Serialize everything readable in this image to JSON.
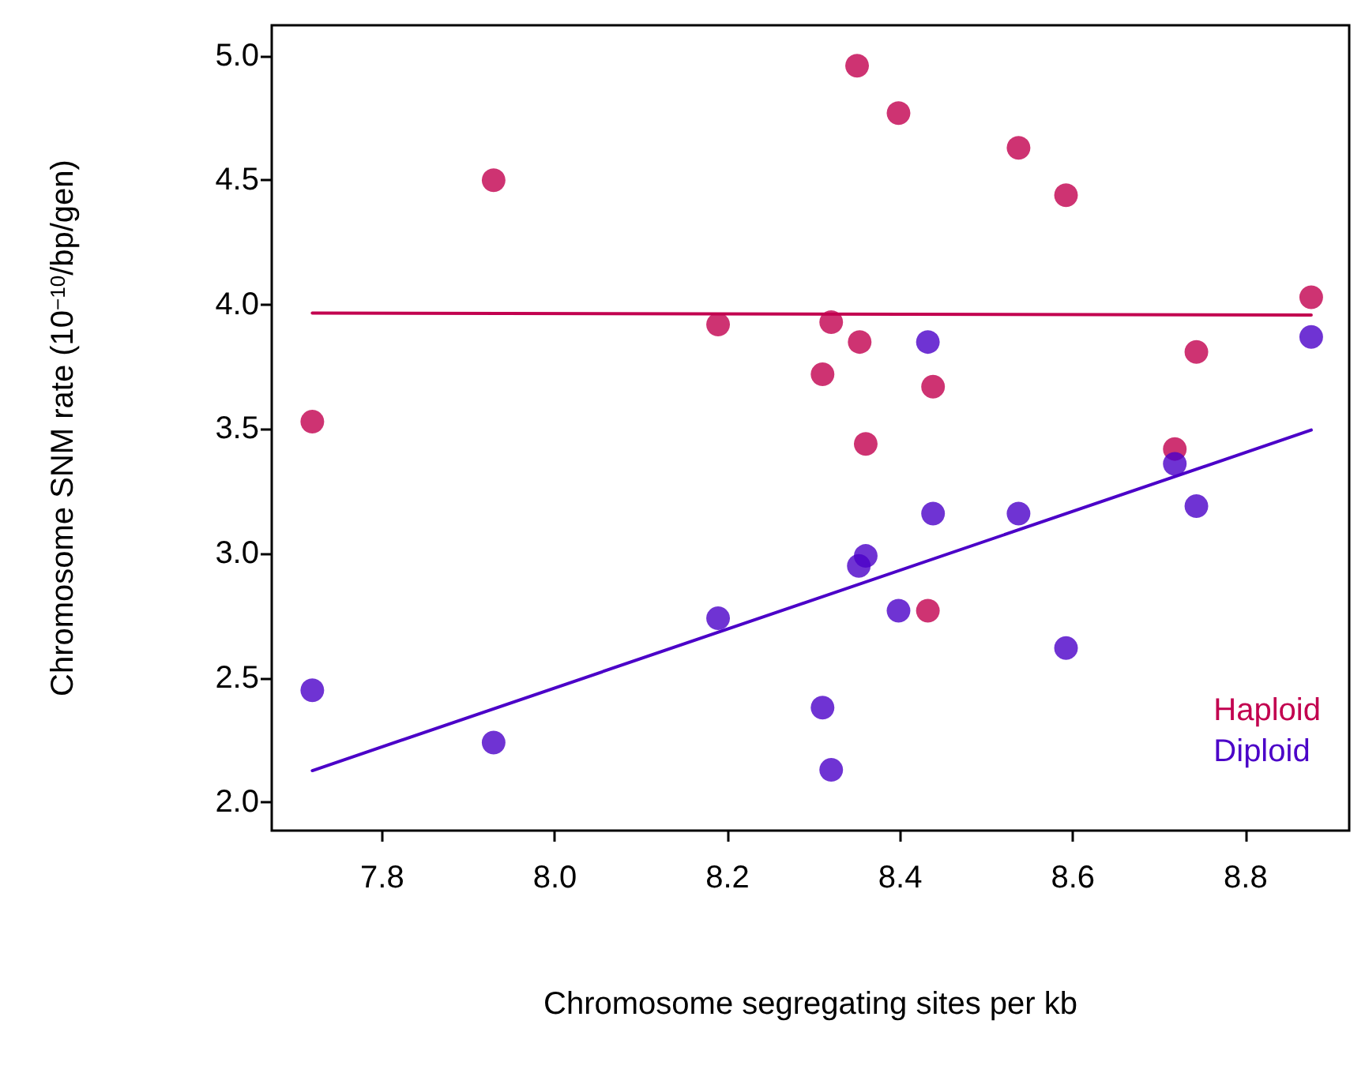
{
  "chart_data": {
    "type": "scatter",
    "xlabel": "Chromosome segregating sites per kb",
    "ylabel": "Chromosome SNM rate (10$^{−10}$/bp/gen)",
    "xlim": [
      7.672,
      8.92
    ],
    "ylim": [
      1.886,
      5.123
    ],
    "xticks": [
      7.8,
      {
        "value": 8,
        "label": "8.0"
      },
      8.2,
      8.4,
      8.6,
      8.8
    ],
    "yticks": [
      {
        "value": 2,
        "label": "2.0"
      },
      2.5,
      {
        "value": 3,
        "label": "3.0"
      },
      3.5,
      {
        "value": 4,
        "label": "4.0"
      },
      4.5,
      {
        "value": 5,
        "label": "5.0"
      }
    ],
    "grid": false,
    "legend": "bottom right",
    "marker": "circle",
    "series": [
      {
        "name": "Haploid",
        "color": "#c2004f",
        "x": [
          7.719,
          7.929,
          8.189,
          8.35,
          8.398,
          8.537,
          8.592,
          8.876,
          8.32,
          8.353,
          8.31,
          8.438,
          8.743,
          8.36,
          8.718,
          8.432
        ],
        "values": [
          3.53,
          4.5,
          3.92,
          4.96,
          4.77,
          4.63,
          4.44,
          4.03,
          3.93,
          3.85,
          3.72,
          3.67,
          3.81,
          3.44,
          3.42,
          2.77
        ]
      },
      {
        "name": "Diploid",
        "color": "#4b00c8",
        "x": [
          7.719,
          7.929,
          8.189,
          8.432,
          8.876,
          8.718,
          8.743,
          8.438,
          8.537,
          8.36,
          8.352,
          8.398,
          8.592,
          8.31,
          8.32
        ],
        "values": [
          2.45,
          2.24,
          2.74,
          3.85,
          3.87,
          3.36,
          3.19,
          3.16,
          3.16,
          2.99,
          2.95,
          2.77,
          2.62,
          2.38,
          2.13
        ]
      },
      {
        "type": "line",
        "color": "#c2004f",
        "marker": "none",
        "x": [
          7.719,
          8.876
        ],
        "values": [
          3.966,
          3.958
        ]
      },
      {
        "type": "line",
        "color": "#4b00c8",
        "marker": "none",
        "x": [
          7.719,
          8.876
        ],
        "values": [
          2.127,
          3.496
        ]
      }
    ]
  }
}
